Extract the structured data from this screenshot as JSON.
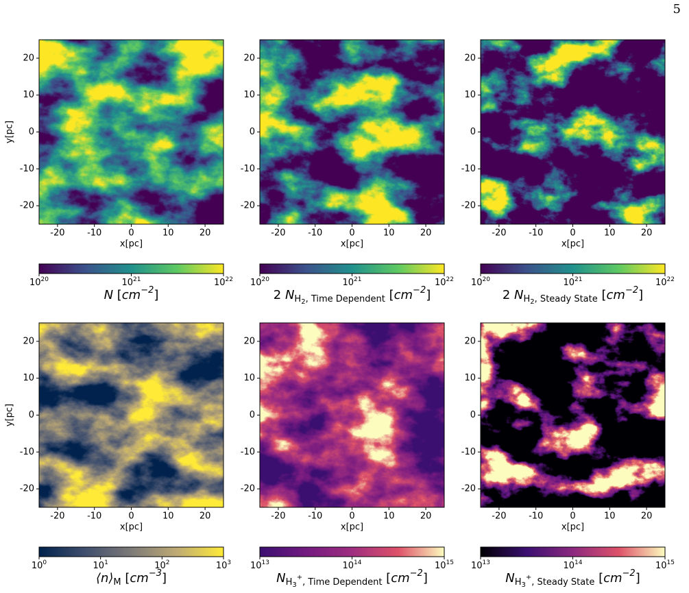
{
  "page_number": "5",
  "chart_data": [
    {
      "type": "image",
      "colormap": "viridis",
      "seed": 3,
      "xlim": [
        -25,
        25
      ],
      "ylim": [
        -25,
        25
      ],
      "xticks": [
        -20,
        -10,
        0,
        10,
        20
      ],
      "yticks": [
        -20,
        -10,
        0,
        10,
        20
      ],
      "xlabel": "x[pc]",
      "ylabel": "y[pc]",
      "colorbar": {
        "lim": [
          1e+20,
          1e+22
        ],
        "log": true,
        "ticks": [
          {
            "value": 1e+20,
            "label": "10",
            "power": "20"
          },
          {
            "value": 1e+21,
            "label": "10",
            "power": "21"
          },
          {
            "value": 1e+22,
            "label": "10",
            "power": "22"
          }
        ],
        "label": [
          {
            "text": "N",
            "style": "italic"
          },
          {
            "text": " [",
            "style": "normal"
          },
          {
            "text": "cm",
            "style": "italic"
          },
          {
            "text": "−2",
            "style": "sup"
          },
          {
            "text": "]",
            "style": "normal"
          }
        ]
      }
    },
    {
      "type": "image",
      "colormap": "viridis_dim",
      "seed": 3,
      "xlim": [
        -25,
        25
      ],
      "ylim": [
        -25,
        25
      ],
      "xticks": [
        -20,
        -10,
        0,
        10,
        20
      ],
      "yticks": [
        -20,
        -10,
        0,
        10,
        20
      ],
      "xlabel": "x[pc]",
      "colorbar": {
        "lim": [
          1e+20,
          1e+22
        ],
        "log": true,
        "ticks": [
          {
            "value": 1e+20,
            "label": "10",
            "power": "20"
          },
          {
            "value": 1e+21,
            "label": "10",
            "power": "21"
          },
          {
            "value": 1e+22,
            "label": "10",
            "power": "22"
          }
        ],
        "label": [
          {
            "text": "2 ",
            "style": "normal"
          },
          {
            "text": "N",
            "style": "italic"
          },
          {
            "text": "H",
            "style": "sub"
          },
          {
            "text": "2",
            "style": "subsub"
          },
          {
            "text": ", Time Dependent",
            "style": "sub"
          },
          {
            "text": " [",
            "style": "normal"
          },
          {
            "text": "cm",
            "style": "italic"
          },
          {
            "text": "−2",
            "style": "sup"
          },
          {
            "text": "]",
            "style": "normal"
          }
        ]
      }
    },
    {
      "type": "image",
      "colormap": "viridis_cut",
      "seed": 3,
      "xlim": [
        -25,
        25
      ],
      "ylim": [
        -25,
        25
      ],
      "xticks": [
        -20,
        -10,
        0,
        10,
        20
      ],
      "yticks": [
        -20,
        -10,
        0,
        10,
        20
      ],
      "xlabel": "x[pc]",
      "colorbar": {
        "lim": [
          1e+20,
          1e+22
        ],
        "log": true,
        "ticks": [
          {
            "value": 1e+20,
            "label": "10",
            "power": "20"
          },
          {
            "value": 1e+21,
            "label": "10",
            "power": "21"
          },
          {
            "value": 1e+22,
            "label": "10",
            "power": "22"
          }
        ],
        "label": [
          {
            "text": "2 ",
            "style": "normal"
          },
          {
            "text": "N",
            "style": "italic"
          },
          {
            "text": "H",
            "style": "sub"
          },
          {
            "text": "2",
            "style": "subsub"
          },
          {
            "text": ", Steady State",
            "style": "sub"
          },
          {
            "text": " [",
            "style": "normal"
          },
          {
            "text": "cm",
            "style": "italic"
          },
          {
            "text": "−2",
            "style": "sup"
          },
          {
            "text": "]",
            "style": "normal"
          }
        ]
      }
    },
    {
      "type": "image",
      "colormap": "cividis",
      "seed": 7,
      "xlim": [
        -25,
        25
      ],
      "ylim": [
        -25,
        25
      ],
      "xticks": [
        -20,
        -10,
        0,
        10,
        20
      ],
      "yticks": [
        -20,
        -10,
        0,
        10,
        20
      ],
      "xlabel": "x[pc]",
      "ylabel": "y[pc]",
      "colorbar": {
        "lim": [
          1,
          1000
        ],
        "log": true,
        "ticks": [
          {
            "value": 1,
            "label": "10",
            "power": "0"
          },
          {
            "value": 10,
            "label": "10",
            "power": "1"
          },
          {
            "value": 100,
            "label": "10",
            "power": "2"
          },
          {
            "value": 1000,
            "label": "10",
            "power": "3"
          }
        ],
        "label": [
          {
            "text": "⟨n⟩",
            "style": "italic"
          },
          {
            "text": "M",
            "style": "sub"
          },
          {
            "text": " [",
            "style": "normal"
          },
          {
            "text": "cm",
            "style": "italic"
          },
          {
            "text": "−3",
            "style": "sup"
          },
          {
            "text": "]",
            "style": "normal"
          }
        ]
      }
    },
    {
      "type": "image",
      "colormap": "magma",
      "seed": 3,
      "xlim": [
        -25,
        25
      ],
      "ylim": [
        -25,
        25
      ],
      "xticks": [
        -20,
        -10,
        0,
        10,
        20
      ],
      "yticks": [
        -20,
        -10,
        0,
        10,
        20
      ],
      "xlabel": "x[pc]",
      "colorbar": {
        "lim": [
          10000000000000.0,
          1000000000000000.0
        ],
        "log": true,
        "ticks": [
          {
            "value": 10000000000000.0,
            "label": "10",
            "power": "13"
          },
          {
            "value": 100000000000000.0,
            "label": "10",
            "power": "14"
          },
          {
            "value": 1000000000000000.0,
            "label": "10",
            "power": "15"
          }
        ],
        "label": [
          {
            "text": "N",
            "style": "italic"
          },
          {
            "text": "H",
            "style": "sub"
          },
          {
            "text": "3",
            "style": "subsub"
          },
          {
            "text": "+",
            "style": "subsup"
          },
          {
            "text": ", Time Dependent",
            "style": "sub"
          },
          {
            "text": " [",
            "style": "normal"
          },
          {
            "text": "cm",
            "style": "italic"
          },
          {
            "text": "−2",
            "style": "sup"
          },
          {
            "text": "]",
            "style": "normal"
          }
        ]
      }
    },
    {
      "type": "image",
      "colormap": "magma_cut",
      "seed": 3,
      "xlim": [
        -25,
        25
      ],
      "ylim": [
        -25,
        25
      ],
      "xticks": [
        -20,
        -10,
        0,
        10,
        20
      ],
      "yticks": [
        -20,
        -10,
        0,
        10,
        20
      ],
      "xlabel": "x[pc]",
      "colorbar": {
        "lim": [
          10000000000000.0,
          1000000000000000.0
        ],
        "log": true,
        "ticks": [
          {
            "value": 10000000000000.0,
            "label": "10",
            "power": "13"
          },
          {
            "value": 100000000000000.0,
            "label": "10",
            "power": "14"
          },
          {
            "value": 1000000000000000.0,
            "label": "10",
            "power": "15"
          }
        ],
        "label": [
          {
            "text": "N",
            "style": "italic"
          },
          {
            "text": "H",
            "style": "sub"
          },
          {
            "text": "3",
            "style": "subsub"
          },
          {
            "text": "+",
            "style": "subsup"
          },
          {
            "text": ", Steady State",
            "style": "sub"
          },
          {
            "text": " [",
            "style": "normal"
          },
          {
            "text": "cm",
            "style": "italic"
          },
          {
            "text": "−2",
            "style": "sup"
          },
          {
            "text": "]",
            "style": "normal"
          }
        ]
      }
    }
  ]
}
